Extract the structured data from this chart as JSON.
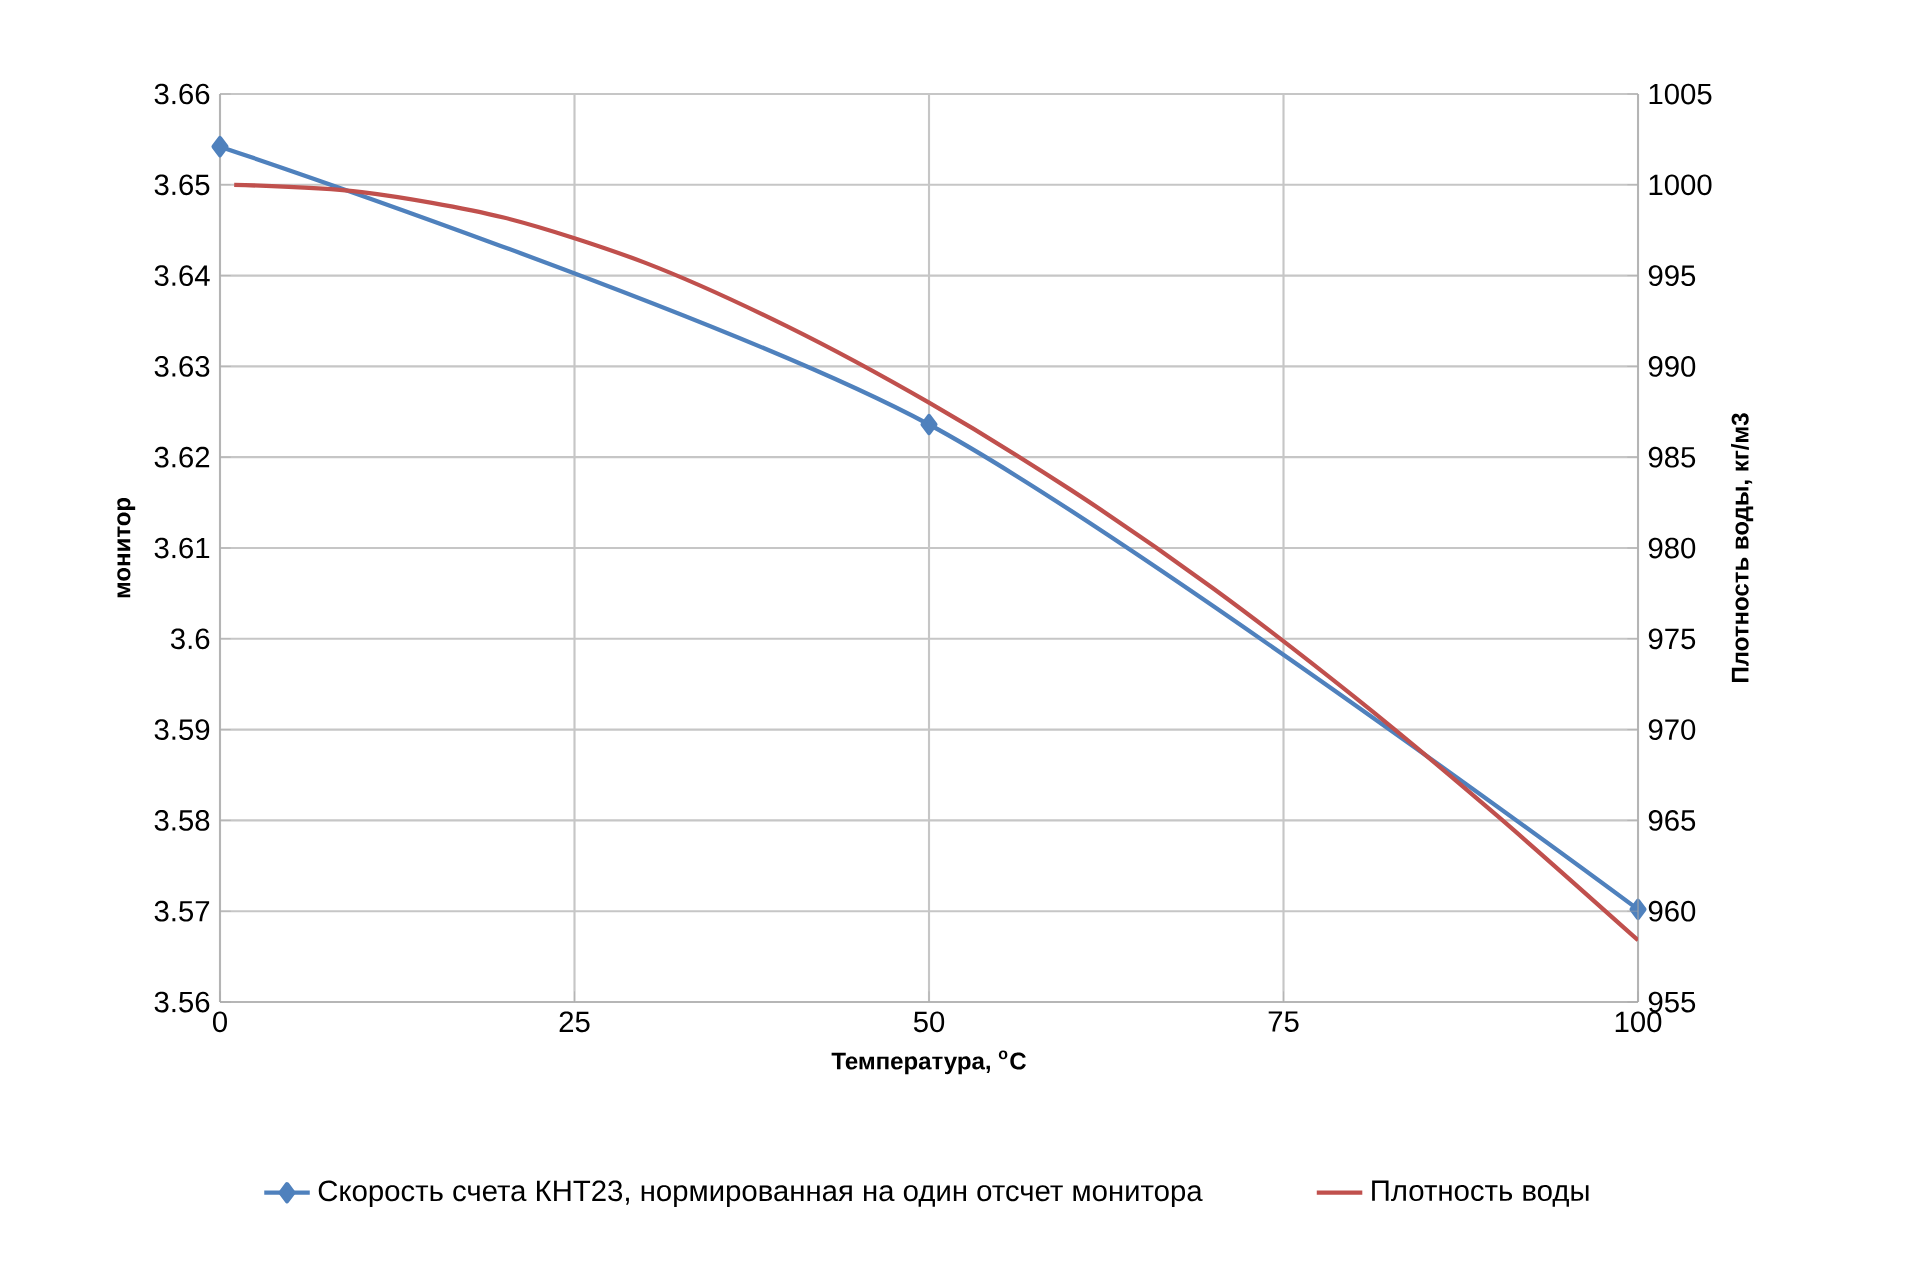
{
  "chart_data": {
    "type": "line",
    "xlabel": "Температура, $^{o}$C",
    "ylabel": "монитор",
    "y2label": "Плотность воды, кг/м3",
    "xlim": [
      0,
      100
    ],
    "xticks": [
      0,
      25,
      50,
      75,
      100
    ],
    "ylim": [
      3.56,
      3.66
    ],
    "yticks": [
      3.56,
      3.57,
      3.58,
      3.59,
      3.6,
      3.61,
      3.62,
      3.63,
      3.64,
      3.65,
      3.66
    ],
    "y2lim": [
      955,
      1005
    ],
    "y2ticks": [
      955,
      960,
      965,
      970,
      975,
      980,
      985,
      990,
      995,
      1000,
      1005
    ],
    "grid": true,
    "legend": "bottom",
    "series": [
      {
        "name": "Скорость счета КНТ23, нормированная на один отсчет монитора",
        "color": "#4f81bd",
        "marker": "diamond",
        "x": [
          0,
          50,
          100
        ],
        "values": [
          3.6542,
          3.6236,
          3.5702
        ]
      },
      {
        "name": "Плотность воды",
        "color": "#c0504d",
        "marker": "none",
        "axis": "y2",
        "x": [
          1,
          10,
          20,
          30,
          40,
          50,
          60,
          70,
          80,
          90,
          100
        ],
        "values": [
          1000.0,
          999.6,
          998.2,
          995.7,
          992.2,
          988.0,
          983.2,
          977.8,
          971.8,
          965.3,
          958.4
        ]
      }
    ]
  }
}
